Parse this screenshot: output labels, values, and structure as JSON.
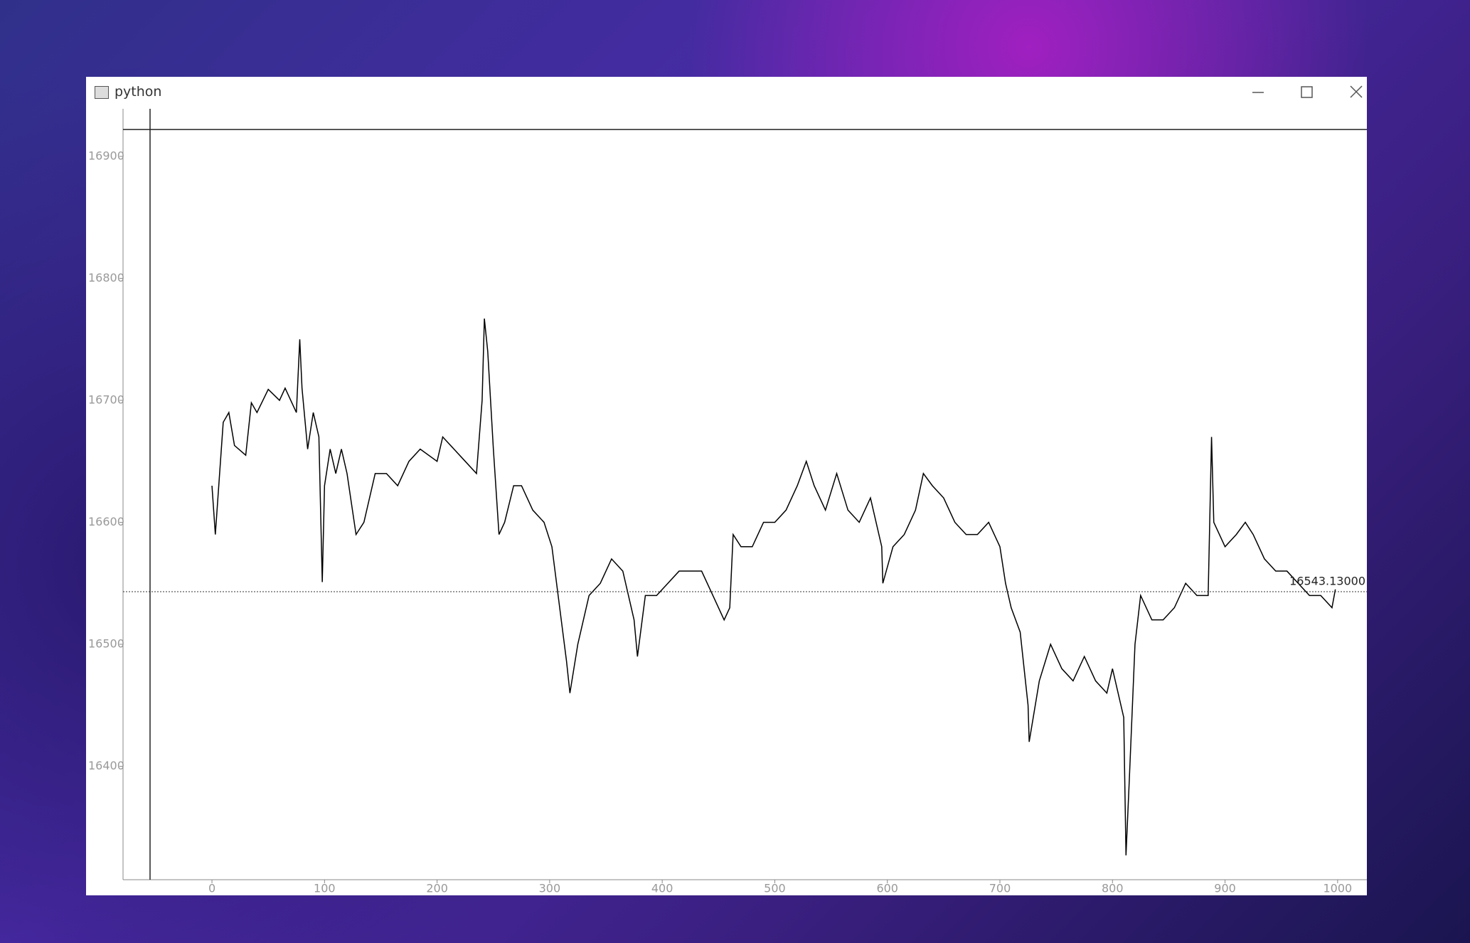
{
  "window": {
    "title": "python"
  },
  "chart_data": {
    "type": "line",
    "x": [
      0,
      3,
      10,
      15,
      20,
      30,
      35,
      40,
      50,
      60,
      65,
      75,
      78,
      80,
      85,
      90,
      95,
      98,
      100,
      105,
      110,
      115,
      120,
      128,
      135,
      145,
      155,
      165,
      175,
      185,
      200,
      205,
      215,
      225,
      235,
      240,
      242,
      245,
      250,
      255,
      260,
      268,
      275,
      285,
      295,
      302,
      315,
      318,
      325,
      335,
      345,
      355,
      365,
      375,
      378,
      385,
      395,
      405,
      415,
      425,
      435,
      445,
      455,
      460,
      463,
      470,
      480,
      490,
      500,
      510,
      520,
      528,
      535,
      545,
      555,
      565,
      575,
      585,
      595,
      596,
      605,
      615,
      625,
      632,
      640,
      650,
      660,
      670,
      680,
      690,
      700,
      705,
      710,
      718,
      725,
      726,
      735,
      745,
      755,
      765,
      775,
      785,
      795,
      800,
      810,
      812,
      815,
      820,
      825,
      835,
      845,
      855,
      865,
      875,
      885,
      888,
      890,
      900,
      910,
      918,
      925,
      935,
      945,
      955,
      965,
      975,
      985,
      995,
      998
    ],
    "series": [
      {
        "color": "#000000",
        "values": [
          16630,
          16590,
          16682,
          16690,
          16663,
          16655,
          16698,
          16690,
          16709,
          16700,
          16710,
          16690,
          16750,
          16710,
          16660,
          16690,
          16670,
          16551,
          16630,
          16660,
          16640,
          16660,
          16640,
          16590,
          16600,
          16640,
          16640,
          16630,
          16650,
          16660,
          16650,
          16670,
          16660,
          16650,
          16640,
          16700,
          16767,
          16740,
          16660,
          16590,
          16600,
          16630,
          16630,
          16610,
          16600,
          16580,
          16486,
          16460,
          16500,
          16540,
          16550,
          16570,
          16560,
          16520,
          16490,
          16540,
          16540,
          16550,
          16560,
          16560,
          16560,
          16540,
          16520,
          16530,
          16590,
          16580,
          16580,
          16600,
          16600,
          16610,
          16630,
          16650,
          16630,
          16610,
          16640,
          16610,
          16600,
          16620,
          16580,
          16550,
          16580,
          16590,
          16610,
          16640,
          16630,
          16620,
          16600,
          16590,
          16590,
          16600,
          16580,
          16550,
          16530,
          16510,
          16450,
          16420,
          16470,
          16500,
          16480,
          16470,
          16490,
          16470,
          16460,
          16480,
          16440,
          16327,
          16390,
          16500,
          16540,
          16520,
          16520,
          16530,
          16550,
          16540,
          16540,
          16670,
          16600,
          16580,
          16590,
          16600,
          16590,
          16570,
          16560,
          16560,
          16550,
          16540,
          16540,
          16530,
          16545
        ]
      }
    ],
    "xlim": [
      -79,
      1026
    ],
    "ylim": [
      16307,
      16939
    ],
    "xticks": [
      0,
      100,
      200,
      300,
      400,
      500,
      600,
      700,
      800,
      900,
      1000
    ],
    "yticks": [
      16400,
      16500,
      16600,
      16700,
      16800,
      16900
    ],
    "last_price": 16543.13,
    "last_price_label": "16543.13000",
    "crosshair": {
      "x": -55,
      "y": 16922
    }
  }
}
